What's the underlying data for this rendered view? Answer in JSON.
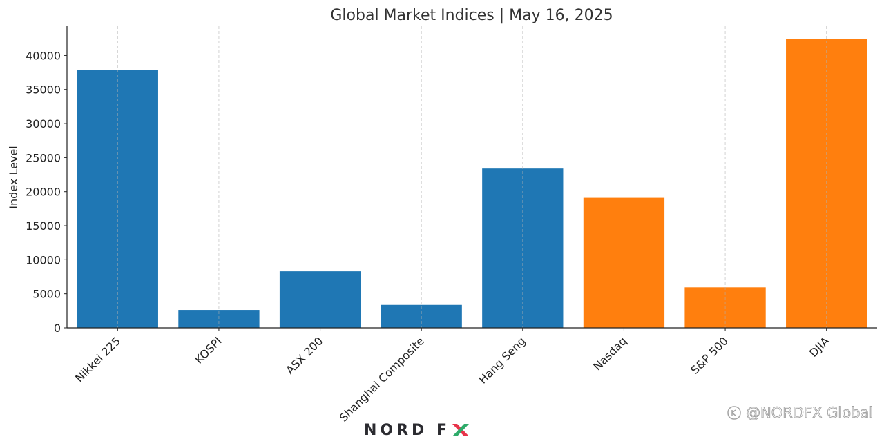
{
  "chart_data": {
    "type": "bar",
    "title": "Global Market Indices | May 16, 2025",
    "xlabel": "",
    "ylabel": "Index Level",
    "categories": [
      "Nikkei 225",
      "KOSPI",
      "ASX 200",
      "Shanghai Composite",
      "Hang Seng",
      "Nasdaq",
      "S&P 500",
      "DJIA"
    ],
    "values": [
      37850,
      2630,
      8300,
      3370,
      23400,
      19100,
      5950,
      42400
    ],
    "bar_colors": [
      "#1f77b4",
      "#1f77b4",
      "#1f77b4",
      "#1f77b4",
      "#1f77b4",
      "#ff7f0e",
      "#ff7f0e",
      "#ff7f0e"
    ],
    "ylim": [
      0,
      44300
    ],
    "yticks": [
      0,
      5000,
      10000,
      15000,
      20000,
      25000,
      30000,
      35000,
      40000
    ],
    "grid": "vertical dashed",
    "legend": "none"
  },
  "branding": {
    "logo_text": "NORD F",
    "logo_colors": [
      "#2b2b30",
      "#e8334a",
      "#2eab6a"
    ],
    "watermark_text": "@NORDFX Global",
    "watermark_icon": "social-bear-icon"
  }
}
